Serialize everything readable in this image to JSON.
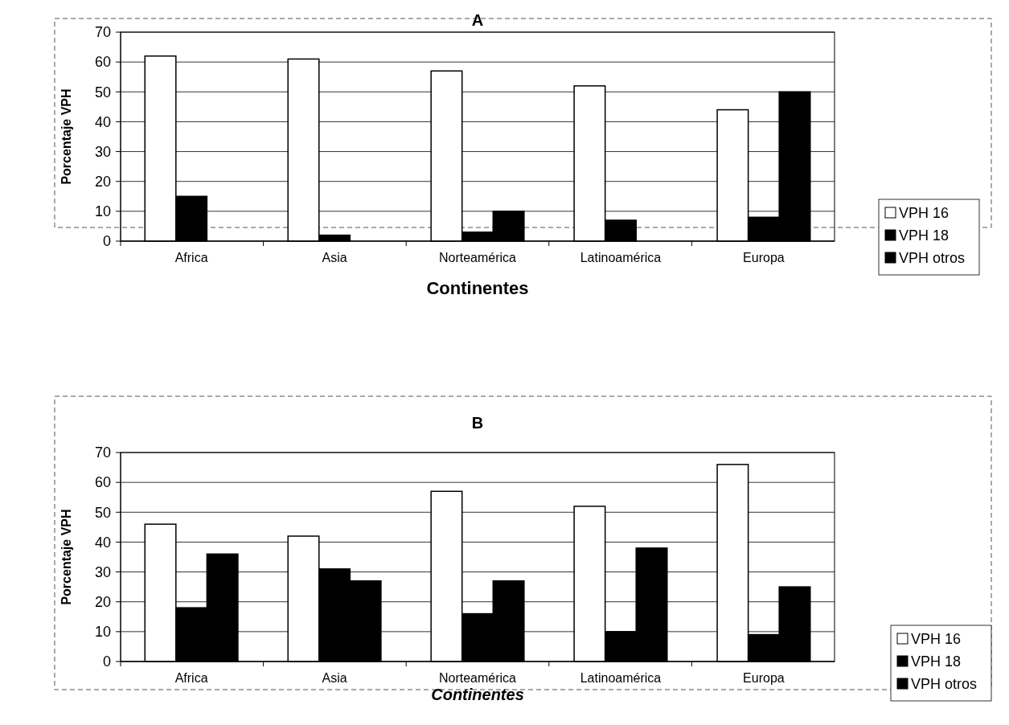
{
  "chart_data": [
    {
      "type": "bar",
      "title": "A",
      "xlabel": "Continentes",
      "ylabel": "Porcentaje  VPH",
      "categories": [
        "Africa",
        "Asia",
        "Norteamérica",
        "Latinoamérica",
        "Europa"
      ],
      "series": [
        {
          "name": "VPH 16",
          "color": "#ffffff",
          "values": [
            62,
            61,
            57,
            52,
            44
          ]
        },
        {
          "name": "VPH 18",
          "color": "#000000",
          "values": [
            15,
            2,
            3,
            7,
            8
          ]
        },
        {
          "name": "VPH otros",
          "color": "#000000",
          "values": [
            0,
            0,
            10,
            0,
            50
          ]
        }
      ],
      "ylim": [
        0,
        70
      ],
      "yticks": [
        0,
        10,
        20,
        30,
        40,
        50,
        60,
        70
      ],
      "grid": "y",
      "legend": "right"
    },
    {
      "type": "bar",
      "title": "B",
      "xlabel": "Continentes",
      "ylabel": "Porcentaje VPH",
      "categories": [
        "Africa",
        "Asia",
        "Norteamérica",
        "Latinoamérica",
        "Europa"
      ],
      "series": [
        {
          "name": "VPH 16",
          "color": "#ffffff",
          "values": [
            46,
            42,
            57,
            52,
            66
          ]
        },
        {
          "name": "VPH 18",
          "color": "#000000",
          "values": [
            18,
            31,
            16,
            10,
            9
          ]
        },
        {
          "name": "VPH otros",
          "color": "#000000",
          "values": [
            36,
            27,
            27,
            38,
            25
          ]
        }
      ],
      "ylim": [
        0,
        70
      ],
      "yticks": [
        0,
        10,
        20,
        30,
        40,
        50,
        60,
        70
      ],
      "grid": "y",
      "legend": "right"
    }
  ]
}
